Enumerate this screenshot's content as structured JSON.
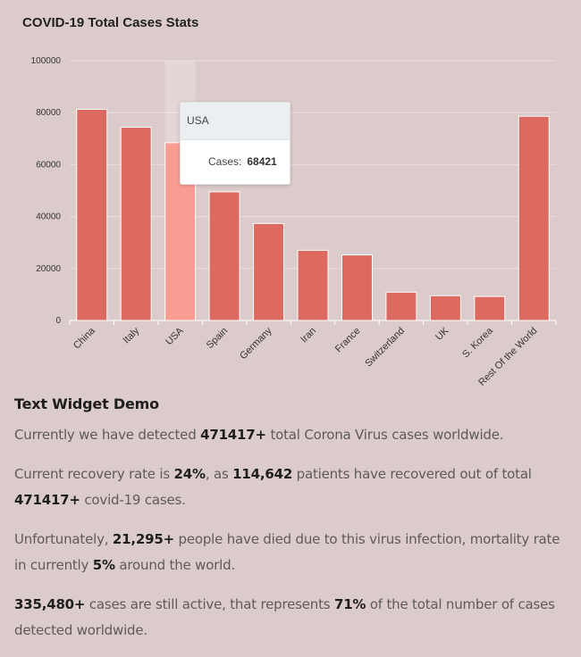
{
  "chart_data": {
    "type": "bar",
    "title": "COVID-19 Total Cases Stats",
    "categories": [
      "China",
      "Italy",
      "USA",
      "Spain",
      "Germany",
      "Iran",
      "France",
      "Switzerland",
      "UK",
      "S. Korea",
      "Rest Of the World"
    ],
    "series": [
      {
        "name": "Cases",
        "values": [
          81285,
          74386,
          68421,
          49515,
          37323,
          27017,
          25233,
          10897,
          9529,
          9241,
          78600
        ]
      }
    ],
    "ylim": [
      0,
      100000
    ],
    "yticks": [
      0,
      20000,
      40000,
      60000,
      80000,
      100000
    ],
    "grid": true,
    "highlighted_index": 2,
    "colors": {
      "bar": "#dc6a60",
      "bar_highlight": "#f99d93",
      "grid": "#ecdede"
    },
    "tooltip": {
      "title": "USA",
      "label": "Cases:",
      "value": "68421"
    }
  },
  "text_widget": {
    "heading": "Text Widget Demo",
    "p1": {
      "t1": "Currently we have detected ",
      "b1": "471417+",
      "t2": " total Corona Virus cases worldwide."
    },
    "p2": {
      "t1": "Current recovery rate is ",
      "b1": "24%",
      "t2": ", as ",
      "b2": "114,642",
      "t3": " patients have recovered out of total ",
      "b3": "471417+",
      "t4": " covid-19 cases."
    },
    "p3": {
      "t1": "Unfortunately, ",
      "b1": "21,295+",
      "t2": " people have died due to this virus infection, mortality rate in currently ",
      "b2": "5%",
      "t3": " around the world."
    },
    "p4": {
      "b1": "335,480+",
      "t1": " cases are still active, that represents ",
      "b2": "71%",
      "t2": " of the total number of cases detected worldwide."
    }
  }
}
